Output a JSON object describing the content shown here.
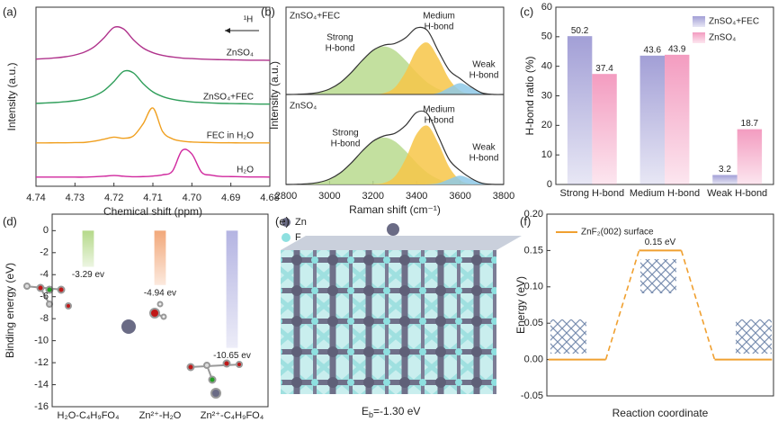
{
  "chart_data": [
    {
      "panel": "(a)",
      "type": "line",
      "xlabel": "Chemical shift (ppm)",
      "ylabel": "Intensity (a.u.)",
      "arrow_label": "¹H",
      "x": [
        4.74,
        4.7375,
        4.735,
        4.7325,
        4.73,
        4.7275,
        4.725,
        4.7225,
        4.72,
        4.7175,
        4.715,
        4.7125,
        4.71,
        4.7075,
        4.705,
        4.7025,
        4.7,
        4.6975,
        4.695,
        4.6925,
        4.69,
        4.6875,
        4.685,
        4.6825,
        4.68
      ],
      "xlim": [
        4.74,
        4.68
      ],
      "xticks": [
        4.74,
        4.73,
        4.72,
        4.71,
        {
          "value": 4.7,
          "label": "4.70"
        },
        4.69,
        4.68
      ],
      "ylim": [
        0,
        10
      ],
      "series": [
        {
          "name": "ZnSO₄",
          "color": "#b0338c",
          "values": [
            7.1,
            7.13,
            7.17,
            7.23,
            7.33,
            7.5,
            7.8,
            8.3,
            8.87,
            8.78,
            8.18,
            7.72,
            7.46,
            7.31,
            7.22,
            7.16,
            7.13,
            7.1,
            7.08,
            7.07,
            7.06,
            7.05,
            7.04,
            7.04,
            7.03
          ]
        },
        {
          "name": "ZnSO₄+FEC",
          "color": "#2f9e5a",
          "values": [
            4.63,
            4.65,
            4.68,
            4.72,
            4.78,
            4.88,
            5.05,
            5.35,
            5.85,
            6.42,
            6.33,
            5.73,
            5.27,
            5.01,
            4.86,
            4.77,
            4.71,
            4.68,
            4.65,
            4.63,
            4.62,
            4.61,
            4.6,
            4.59,
            4.59
          ]
        },
        {
          "name": "FEC in H₂O",
          "color": "#f0a020",
          "values": [
            2.42,
            2.42,
            2.43,
            2.43,
            2.44,
            2.45,
            2.52,
            2.63,
            2.74,
            2.68,
            2.81,
            3.49,
            4.37,
            3.05,
            2.65,
            2.52,
            2.47,
            2.45,
            2.44,
            2.43,
            2.43,
            2.42,
            2.42,
            2.42,
            2.42
          ]
        },
        {
          "name": "H₂O",
          "color": "#d0289e",
          "values": [
            0.51,
            0.51,
            0.51,
            0.51,
            0.51,
            0.51,
            0.53,
            0.56,
            0.6,
            0.56,
            0.53,
            0.54,
            0.57,
            0.64,
            0.84,
            2.0,
            1.8,
            0.78,
            0.62,
            0.55,
            0.54,
            0.53,
            0.52,
            0.52,
            0.51
          ]
        }
      ]
    },
    {
      "panel": "(b)",
      "type": "area",
      "title": "ZnSO₄+FEC",
      "ylabel": "Intensity (a.u.)",
      "x": [
        2800,
        2850,
        2900,
        2950,
        3000,
        3050,
        3100,
        3150,
        3200,
        3250,
        3300,
        3350,
        3400,
        3450,
        3500,
        3550,
        3600,
        3650,
        3700,
        3750,
        3800
      ],
      "xlim": [
        2800,
        3800
      ],
      "ylim": [
        0,
        10
      ],
      "annotations": [
        [
          "Strong",
          "H-bond"
        ],
        [
          "Medium",
          "H-bond"
        ],
        [
          "Weak",
          "H-bond"
        ]
      ],
      "series": [
        {
          "color": "#b8da8e",
          "fill": true,
          "values": [
            0,
            0.02,
            0.08,
            0.24,
            0.63,
            1.37,
            2.52,
            3.89,
            5.04,
            5.5,
            5.04,
            3.89,
            2.52,
            1.37,
            0.63,
            0.24,
            0.08,
            0.02,
            0,
            0,
            0
          ]
        },
        {
          "color": "#f7c548",
          "fill": true,
          "values": [
            0,
            0,
            0,
            0,
            0,
            0,
            0,
            0,
            0.02,
            0.15,
            0.81,
            2.62,
            5.1,
            5.94,
            4.16,
            1.75,
            0.44,
            0.07,
            0,
            0,
            0
          ]
        },
        {
          "color": "#8ec9e8",
          "fill": true,
          "values": [
            0,
            0,
            0,
            0,
            0,
            0,
            0,
            0,
            0,
            0,
            0,
            0,
            0,
            0.01,
            0.18,
            0.79,
            1.3,
            0.79,
            0.18,
            0.01,
            0
          ]
        },
        {
          "color": "#333333",
          "fill": false,
          "values": [
            0,
            0.02,
            0.08,
            0.24,
            0.63,
            1.37,
            2.52,
            3.89,
            5.06,
            5.65,
            5.85,
            6.51,
            7.62,
            7.32,
            4.97,
            2.78,
            1.82,
            0.88,
            0.18,
            0.01,
            0
          ]
        }
      ]
    },
    {
      "type": "area",
      "title": "ZnSO₄",
      "xlabel": "Raman shift (cm⁻¹)",
      "x": [
        2800,
        2850,
        2900,
        2950,
        3000,
        3050,
        3100,
        3150,
        3200,
        3250,
        3300,
        3350,
        3400,
        3450,
        3500,
        3550,
        3600,
        3650,
        3700,
        3750,
        3800
      ],
      "xlim": [
        2800,
        3800
      ],
      "xticks": [
        2800,
        3000,
        3200,
        3400,
        3600,
        3800
      ],
      "ylim": [
        0,
        10
      ],
      "annotations": [
        [
          "Strong",
          "H-bond"
        ],
        [
          "Medium",
          "H-bond"
        ],
        [
          "Weak",
          "H-bond"
        ]
      ],
      "series": [
        {
          "color": "#b8da8e",
          "fill": true,
          "values": [
            0,
            0.02,
            0.08,
            0.23,
            0.6,
            1.3,
            2.39,
            3.7,
            4.79,
            5.23,
            4.79,
            3.7,
            2.39,
            1.3,
            0.6,
            0.23,
            0.08,
            0.02,
            0,
            0,
            0
          ]
        },
        {
          "color": "#f7c548",
          "fill": true,
          "values": [
            0,
            0,
            0,
            0,
            0,
            0,
            0,
            0,
            0.02,
            0.17,
            0.89,
            2.88,
            5.61,
            6.53,
            4.58,
            1.93,
            0.48,
            0.08,
            0,
            0,
            0
          ]
        },
        {
          "color": "#8ec9e8",
          "fill": true,
          "values": [
            0,
            0,
            0,
            0,
            0,
            0,
            0,
            0,
            0,
            0,
            0,
            0,
            0,
            0.01,
            0.14,
            0.59,
            0.98,
            0.59,
            0.14,
            0.01,
            0
          ]
        },
        {
          "color": "#333333",
          "fill": false,
          "values": [
            0,
            0.02,
            0.08,
            0.23,
            0.6,
            1.3,
            2.39,
            3.7,
            4.81,
            5.4,
            5.68,
            6.58,
            8.0,
            7.84,
            5.32,
            2.75,
            1.54,
            0.69,
            0.14,
            0.01,
            0
          ]
        }
      ]
    },
    {
      "panel": "(c)",
      "type": "bar",
      "ylabel": "H-bond ratio (%)",
      "legend": "upper right",
      "categories": [
        "Strong H-bond",
        "Medium H-bond",
        "Weak H-bond"
      ],
      "ylim": [
        0,
        60
      ],
      "yticks": [
        0,
        10,
        20,
        30,
        40,
        50,
        60
      ],
      "series": [
        {
          "name": "ZnSO₄+FEC",
          "color": "#a29fd6",
          "values": [
            50.2,
            43.6,
            3.2
          ]
        },
        {
          "name": "ZnSO₄",
          "color": "#f39cc0",
          "values": [
            37.4,
            43.9,
            18.7
          ]
        }
      ]
    },
    {
      "panel": "(d)",
      "type": "bar",
      "ylabel": "Binding energy (eV)",
      "categories": [
        "H₂O-C₄H₉FO₄",
        "Zn²⁺-H₂O",
        "Zn²⁺-C₄H₉FO₄"
      ],
      "ylim": [
        -16,
        1.5
      ],
      "yticks": [
        0,
        -2,
        -4,
        -6,
        -8,
        -10,
        -12,
        -14,
        -16
      ],
      "values": [
        -3.29,
        -4.94,
        -10.65
      ],
      "value_labels": [
        "-3.29 ev",
        "-4.94 ev",
        "-10.65 ev"
      ],
      "colors": [
        "#b5d98a",
        "#f2a87a",
        "#b4b4e2"
      ]
    },
    {
      "panel": "(f)",
      "type": "step",
      "ylabel": "Energy (eV)",
      "xlabel": "Reaction coordinate",
      "legend": "upper left",
      "categories": [
        null,
        null,
        null
      ],
      "ylim": [
        -0.05,
        0.2
      ],
      "yticks": [
        -0.05,
        {
          "value": 0,
          "label": "0.00"
        },
        0.05,
        {
          "value": 0.1,
          "label": "0.10"
        },
        0.15,
        {
          "value": 0.2,
          "label": "0.20"
        }
      ],
      "series": [
        {
          "name": "ZnF₂(002) surface",
          "color": "#f0a030",
          "values": [
            0,
            0.15,
            0
          ],
          "value_labels": [
            null,
            "0.15 eV",
            null
          ]
        }
      ]
    }
  ],
  "structure": {
    "panel": "(e)",
    "legend": [
      "Zn",
      "F"
    ],
    "caption": {
      "symbol": "E",
      "subscript": "b",
      "text": "=-1.30 eV"
    }
  }
}
